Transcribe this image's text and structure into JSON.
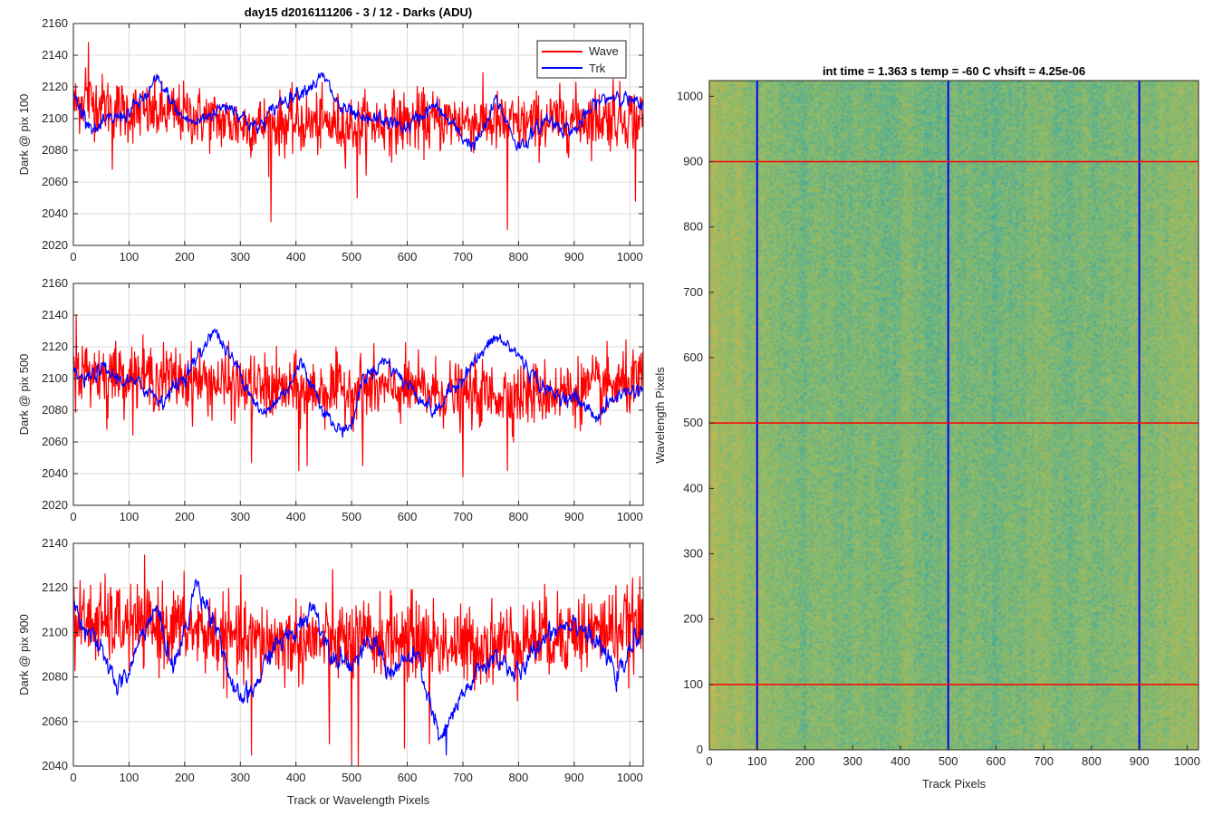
{
  "figure": {
    "title": "day15 d2016111206 - 3 / 12 - Darks (ADU)",
    "colors": {
      "wave": "#ff0000",
      "trk": "#0000ff",
      "grid": "#dcdcdc",
      "axis": "#262626"
    }
  },
  "chart_data": [
    {
      "type": "line",
      "id": "pix100",
      "title": "day15 d2016111206 - 3 / 12 - Darks (ADU)",
      "xlabel": "",
      "ylabel": "Dark @ pix 100",
      "xlim": [
        0,
        1024
      ],
      "ylim": [
        2020,
        2160
      ],
      "xticks": [
        0,
        100,
        200,
        300,
        400,
        500,
        600,
        700,
        800,
        900,
        1000
      ],
      "yticks": [
        2020,
        2040,
        2060,
        2080,
        2100,
        2120,
        2140,
        2160
      ],
      "grid": true,
      "legend": {
        "position": "top-right",
        "entries": [
          "Wave",
          "Trk"
        ]
      },
      "series": [
        {
          "name": "Wave",
          "color": "#ff0000",
          "noise": 9.5,
          "knots": [
            [
              0,
              2108
            ],
            [
              20,
              2112
            ],
            [
              100,
              2104
            ],
            [
              200,
              2103
            ],
            [
              300,
              2096
            ],
            [
              400,
              2097
            ],
            [
              500,
              2096
            ],
            [
              600,
              2098
            ],
            [
              700,
              2099
            ],
            [
              800,
              2096
            ],
            [
              900,
              2100
            ],
            [
              1000,
              2101
            ],
            [
              1024,
              2100
            ]
          ],
          "spikes": [
            [
              27,
              2148
            ],
            [
              22,
              2132
            ],
            [
              40,
              2112
            ],
            [
              70,
              2068
            ],
            [
              355,
              2035
            ],
            [
              510,
              2050
            ],
            [
              780,
              2030
            ],
            [
              1010,
              2048
            ],
            [
              970,
              2125
            ]
          ]
        },
        {
          "name": "Trk",
          "color": "#0000ff",
          "noise": 3.5,
          "knots": [
            [
              0,
              2115
            ],
            [
              15,
              2105
            ],
            [
              40,
              2092
            ],
            [
              60,
              2098
            ],
            [
              100,
              2104
            ],
            [
              130,
              2114
            ],
            [
              150,
              2124
            ],
            [
              175,
              2112
            ],
            [
              190,
              2102
            ],
            [
              220,
              2097
            ],
            [
              250,
              2104
            ],
            [
              280,
              2109
            ],
            [
              300,
              2103
            ],
            [
              330,
              2093
            ],
            [
              370,
              2110
            ],
            [
              410,
              2118
            ],
            [
              430,
              2122
            ],
            [
              450,
              2126
            ],
            [
              480,
              2106
            ],
            [
              500,
              2103
            ],
            [
              520,
              2098
            ],
            [
              550,
              2100
            ],
            [
              600,
              2094
            ],
            [
              620,
              2101
            ],
            [
              650,
              2108
            ],
            [
              700,
              2088
            ],
            [
              720,
              2083
            ],
            [
              740,
              2094
            ],
            [
              760,
              2112
            ],
            [
              800,
              2082
            ],
            [
              820,
              2088
            ],
            [
              850,
              2100
            ],
            [
              900,
              2092
            ],
            [
              940,
              2110
            ],
            [
              980,
              2116
            ],
            [
              1024,
              2106
            ]
          ],
          "spikes": []
        }
      ]
    },
    {
      "type": "line",
      "id": "pix500",
      "title": "",
      "xlabel": "",
      "ylabel": "Dark @ pix 500",
      "xlim": [
        0,
        1024
      ],
      "ylim": [
        2020,
        2160
      ],
      "xticks": [
        0,
        100,
        200,
        300,
        400,
        500,
        600,
        700,
        800,
        900,
        1000
      ],
      "yticks": [
        2020,
        2040,
        2060,
        2080,
        2100,
        2120,
        2140,
        2160
      ],
      "grid": true,
      "series": [
        {
          "name": "Wave",
          "color": "#ff0000",
          "noise": 10,
          "knots": [
            [
              0,
              2105
            ],
            [
              100,
              2102
            ],
            [
              200,
              2100
            ],
            [
              300,
              2095
            ],
            [
              400,
              2092
            ],
            [
              500,
              2093
            ],
            [
              600,
              2093
            ],
            [
              700,
              2090
            ],
            [
              800,
              2090
            ],
            [
              900,
              2092
            ],
            [
              1024,
              2098
            ]
          ],
          "spikes": [
            [
              5,
              2140
            ],
            [
              60,
              2068
            ],
            [
              320,
              2047
            ],
            [
              405,
              2042
            ],
            [
              420,
              2045
            ],
            [
              520,
              2045
            ],
            [
              700,
              2038
            ],
            [
              780,
              2042
            ]
          ]
        },
        {
          "name": "Trk",
          "color": "#0000ff",
          "noise": 3.5,
          "knots": [
            [
              0,
              2104
            ],
            [
              20,
              2098
            ],
            [
              50,
              2106
            ],
            [
              80,
              2100
            ],
            [
              100,
              2098
            ],
            [
              130,
              2094
            ],
            [
              160,
              2086
            ],
            [
              200,
              2102
            ],
            [
              230,
              2116
            ],
            [
              250,
              2132
            ],
            [
              280,
              2115
            ],
            [
              300,
              2104
            ],
            [
              340,
              2076
            ],
            [
              380,
              2092
            ],
            [
              410,
              2110
            ],
            [
              430,
              2095
            ],
            [
              470,
              2068
            ],
            [
              500,
              2070
            ],
            [
              520,
              2100
            ],
            [
              560,
              2112
            ],
            [
              600,
              2096
            ],
            [
              620,
              2090
            ],
            [
              650,
              2078
            ],
            [
              680,
              2093
            ],
            [
              720,
              2110
            ],
            [
              760,
              2126
            ],
            [
              800,
              2115
            ],
            [
              830,
              2100
            ],
            [
              860,
              2090
            ],
            [
              900,
              2088
            ],
            [
              940,
              2076
            ],
            [
              980,
              2090
            ],
            [
              1024,
              2094
            ]
          ],
          "spikes": []
        }
      ]
    },
    {
      "type": "line",
      "id": "pix900",
      "title": "",
      "xlabel": "Track or Wavelength Pixels",
      "ylabel": "Dark @ pix 900",
      "xlim": [
        0,
        1024
      ],
      "ylim": [
        2040,
        2140
      ],
      "xticks": [
        0,
        100,
        200,
        300,
        400,
        500,
        600,
        700,
        800,
        900,
        1000
      ],
      "yticks": [
        2040,
        2060,
        2080,
        2100,
        2120,
        2140
      ],
      "grid": true,
      "series": [
        {
          "name": "Wave",
          "color": "#ff0000",
          "noise": 9,
          "knots": [
            [
              0,
              2105
            ],
            [
              100,
              2103
            ],
            [
              200,
              2102
            ],
            [
              300,
              2096
            ],
            [
              400,
              2096
            ],
            [
              500,
              2096
            ],
            [
              600,
              2098
            ],
            [
              700,
              2093
            ],
            [
              800,
              2097
            ],
            [
              900,
              2100
            ],
            [
              1024,
              2103
            ]
          ],
          "spikes": [
            [
              500,
              2042
            ],
            [
              512,
              2040
            ],
            [
              320,
              2045
            ],
            [
              460,
              2050
            ],
            [
              595,
              2048
            ],
            [
              640,
              2050
            ]
          ]
        },
        {
          "name": "Trk",
          "color": "#0000ff",
          "noise": 3.5,
          "knots": [
            [
              0,
              2112
            ],
            [
              30,
              2100
            ],
            [
              60,
              2086
            ],
            [
              80,
              2076
            ],
            [
              100,
              2082
            ],
            [
              130,
              2104
            ],
            [
              150,
              2110
            ],
            [
              180,
              2084
            ],
            [
              200,
              2100
            ],
            [
              220,
              2122
            ],
            [
              260,
              2102
            ],
            [
              290,
              2070
            ],
            [
              320,
              2072
            ],
            [
              360,
              2094
            ],
            [
              400,
              2100
            ],
            [
              430,
              2113
            ],
            [
              460,
              2092
            ],
            [
              500,
              2086
            ],
            [
              540,
              2096
            ],
            [
              570,
              2082
            ],
            [
              600,
              2088
            ],
            [
              620,
              2088
            ],
            [
              660,
              2050
            ],
            [
              680,
              2062
            ],
            [
              720,
              2080
            ],
            [
              760,
              2090
            ],
            [
              800,
              2080
            ],
            [
              850,
              2100
            ],
            [
              900,
              2106
            ],
            [
              950,
              2092
            ],
            [
              980,
              2080
            ],
            [
              1024,
              2104
            ]
          ],
          "spikes": [
            [
              670,
              2045
            ]
          ]
        }
      ]
    },
    {
      "type": "heatmap",
      "id": "image",
      "title": "int time = 1.363 s   temp = -60 C   vhsift = 4.25e-06",
      "xlabel": "Track Pixels",
      "ylabel": "Wavelength Pixels",
      "xlim": [
        0,
        1024
      ],
      "ylim": [
        0,
        1024
      ],
      "xticks": [
        0,
        100,
        200,
        300,
        400,
        500,
        600,
        700,
        800,
        900,
        1000
      ],
      "yticks": [
        0,
        100,
        200,
        300,
        400,
        500,
        600,
        700,
        800,
        900,
        1000
      ],
      "colormap": [
        "#2ea5ad",
        "#8cbb6a",
        "#d6b548"
      ],
      "vertical_lines": {
        "x": [
          100,
          500,
          900
        ],
        "color": "#0000ff"
      },
      "horizontal_lines": {
        "y": [
          100,
          500,
          900
        ],
        "color": "#ff0000"
      }
    }
  ]
}
